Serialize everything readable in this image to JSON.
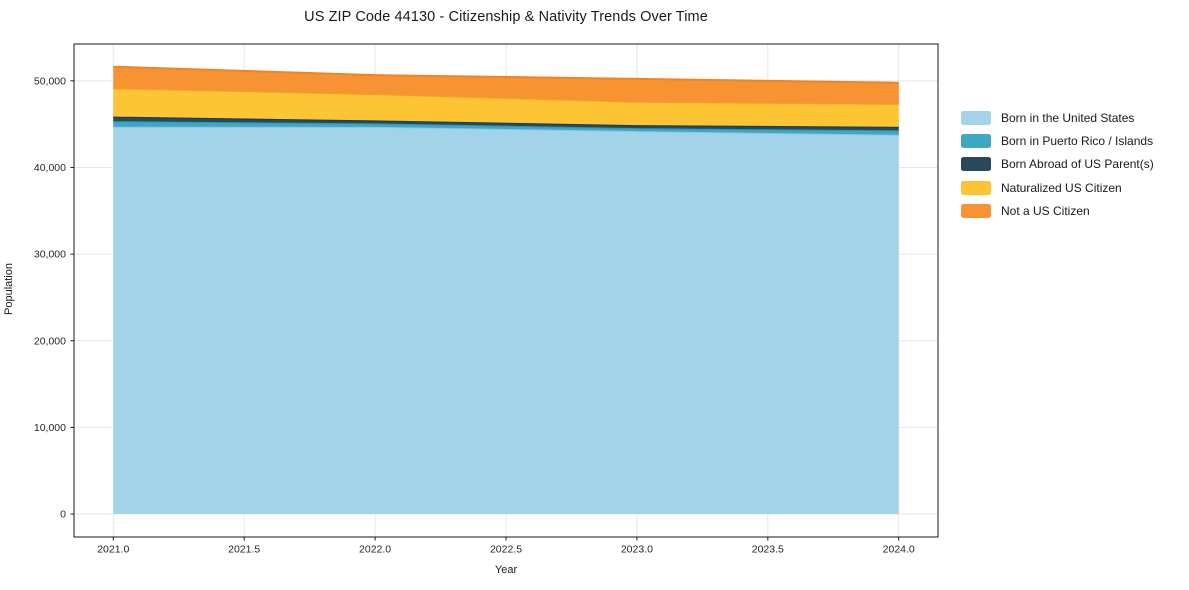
{
  "chart_data": {
    "type": "area",
    "stacked": true,
    "title": "US ZIP Code 44130 - Citizenship & Nativity Trends Over Time",
    "xlabel": "Year",
    "ylabel": "Population",
    "x": [
      2021,
      2022,
      2023,
      2024
    ],
    "series": [
      {
        "name": "Born in the United States",
        "values": [
          44700,
          44690,
          44200,
          43770
        ],
        "fill": "#a3d3e8",
        "line": "#8cc5de"
      },
      {
        "name": "Born in Puerto Rico / Islands",
        "values": [
          650,
          400,
          340,
          510
        ],
        "fill": "#3fa7c3",
        "line": "#2f97b3"
      },
      {
        "name": "Born Abroad of US Parent(s)",
        "values": [
          520,
          340,
          350,
          410
        ],
        "fill": "#26495c",
        "line": "#1d3c4e"
      },
      {
        "name": "Naturalized US Citizen",
        "values": [
          3280,
          3040,
          2690,
          2660
        ],
        "fill": "#fdc433",
        "line": "#f2a227"
      },
      {
        "name": "Not a US Citizen",
        "values": [
          2480,
          2190,
          2650,
          2420
        ],
        "fill": "#f89333",
        "line": "#ee8426"
      }
    ],
    "xlim": [
      2020.85,
      2024.15
    ],
    "ylim": [
      -2650,
      54250
    ],
    "xticks": {
      "values": [
        2021,
        2021.5,
        2022,
        2022.5,
        2023,
        2023.5,
        2024
      ],
      "labels": [
        "2021.0",
        "2021.5",
        "2022.0",
        "2022.5",
        "2023.0",
        "2023.5",
        "2024.0"
      ]
    },
    "yticks": {
      "values": [
        0,
        10000,
        20000,
        30000,
        40000,
        50000
      ],
      "labels": [
        "0",
        "10,000",
        "20,000",
        "30,000",
        "40,000",
        "50,000"
      ]
    },
    "grid": true,
    "legend_position": "outside-right"
  },
  "colors": {
    "background": "#ffffff",
    "grid": "#e7e7e7",
    "frame": "#1a1a1a",
    "tick": "#1a1a1a",
    "text": "#262626"
  }
}
